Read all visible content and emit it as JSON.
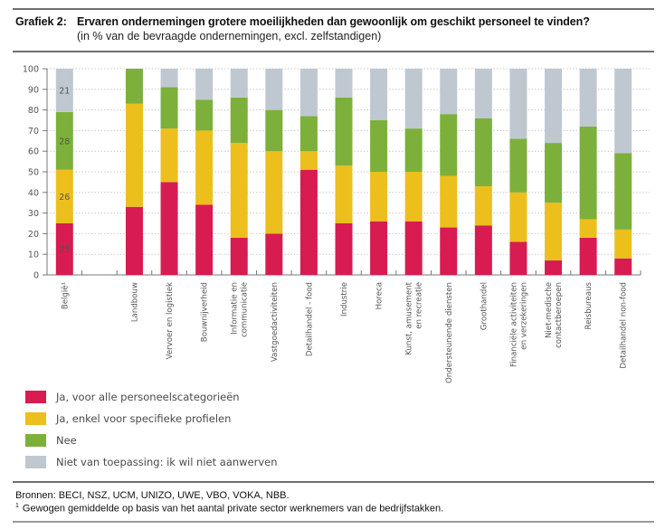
{
  "header": {
    "figure_number": "Grafiek 2:",
    "title": "Ervaren ondernemingen grotere moeilijkheden dan gewoonlijk om geschikt personeel te vinden?",
    "subtitle": "(in % van de bevraagde ondernemingen, excl. zelfstandigen)"
  },
  "footer": {
    "sources": "Bronnen: BECI, NSZ, UCM, UNIZO, UWE, VBO, VOKA, NBB.",
    "footnote_marker": "1",
    "footnote": "Gewogen gemiddelde op basis van het aantal private sector werknemers van de bedrijfstakken."
  },
  "chart_data": {
    "type": "bar",
    "stacked": true,
    "title": "Ervaren ondernemingen grotere moeilijkheden dan gewoonlijk om geschikt personeel te vinden?",
    "subtitle": "(in % van de bevraagde ondernemingen, excl. zelfstandigen)",
    "xlabel": "",
    "ylabel": "",
    "ylim": [
      0,
      100
    ],
    "yticks": [
      0,
      10,
      20,
      30,
      40,
      50,
      60,
      70,
      80,
      90,
      100
    ],
    "grid": "horizontal-dotted",
    "legend_position": "bottom-left",
    "categories": [
      [
        "België¹"
      ],
      [
        ""
      ],
      [
        "Landbouw"
      ],
      [
        "Vervoer en logistiek"
      ],
      [
        "Bouwnijverheid"
      ],
      [
        "Informatie en",
        "communicatie"
      ],
      [
        "Vastgoedactiviteiten"
      ],
      [
        "Detailhandel - food"
      ],
      [
        "Industrie"
      ],
      [
        "Horeca"
      ],
      [
        "Kunst, amusement",
        "en recreatie"
      ],
      [
        "Ondersteunende diensten"
      ],
      [
        "Groothandel"
      ],
      [
        "Financiële activiteiten",
        "en verzekeringen"
      ],
      [
        "Niet-medische",
        "contactberoepen"
      ],
      [
        "Reisbureaus"
      ],
      [
        "Detailhandel non-food"
      ]
    ],
    "series": [
      {
        "name": "Ja, voor alle personeelscategorieën",
        "color": "#d81b50",
        "values": [
          25,
          null,
          33,
          45,
          34,
          18,
          20,
          51,
          25,
          26,
          26,
          23,
          24,
          16,
          7,
          18,
          8
        ]
      },
      {
        "name": "Ja, enkel voor specifieke profielen",
        "color": "#ecbf1c",
        "values": [
          26,
          null,
          50,
          26,
          36,
          46,
          40,
          9,
          28,
          24,
          24,
          25,
          19,
          24,
          28,
          9,
          14
        ]
      },
      {
        "name": "Nee",
        "color": "#7cb03b",
        "values": [
          28,
          null,
          17,
          20,
          15,
          22,
          20,
          17,
          33,
          25,
          21,
          30,
          33,
          26,
          29,
          45,
          37
        ]
      },
      {
        "name": "Niet van toepassing: ik wil niet aanwerven",
        "color": "#bfc8d0",
        "values": [
          21,
          null,
          0,
          9,
          15,
          14,
          20,
          23,
          14,
          25,
          29,
          22,
          24,
          34,
          36,
          28,
          41
        ]
      }
    ],
    "data_labels": {
      "category_index": 0,
      "values": [
        25,
        26,
        28,
        21
      ]
    }
  }
}
